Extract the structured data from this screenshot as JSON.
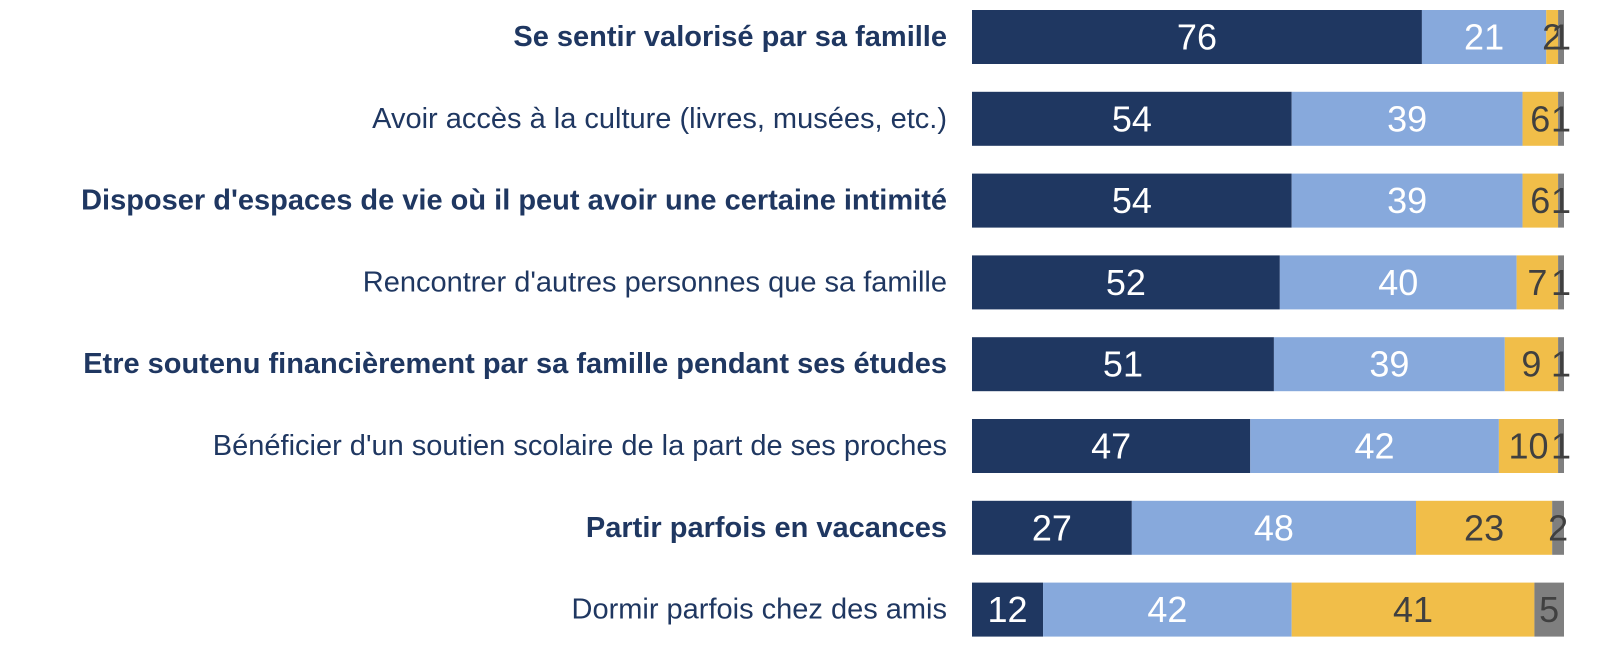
{
  "chart_data": {
    "type": "stacked-bar-horizontal",
    "categories": [
      "Se sentir valorisé par sa famille",
      "Avoir accès à la culture (livres, musées, etc.)",
      "Disposer d'espaces de vie où il peut avoir une certaine intimité",
      "Rencontrer d'autres personnes que sa famille",
      "Etre soutenu financièrement par sa famille pendant ses études",
      "Bénéficier d'un soutien scolaire de la part de ses proches",
      "Partir parfois en vacances",
      "Dormir parfois chez des amis"
    ],
    "series": [
      {
        "color": "#1f3761",
        "values": [
          76,
          54,
          54,
          52,
          51,
          47,
          27,
          12
        ]
      },
      {
        "color": "#87a9dc",
        "values": [
          21,
          39,
          39,
          40,
          39,
          42,
          48,
          42
        ]
      },
      {
        "color": "#f1be49",
        "values": [
          2,
          6,
          6,
          7,
          9,
          10,
          23,
          41
        ]
      },
      {
        "color": "#7f7f7f",
        "values": [
          1,
          1,
          1,
          1,
          1,
          1,
          2,
          5
        ]
      }
    ],
    "xlim": [
      0,
      100
    ]
  }
}
